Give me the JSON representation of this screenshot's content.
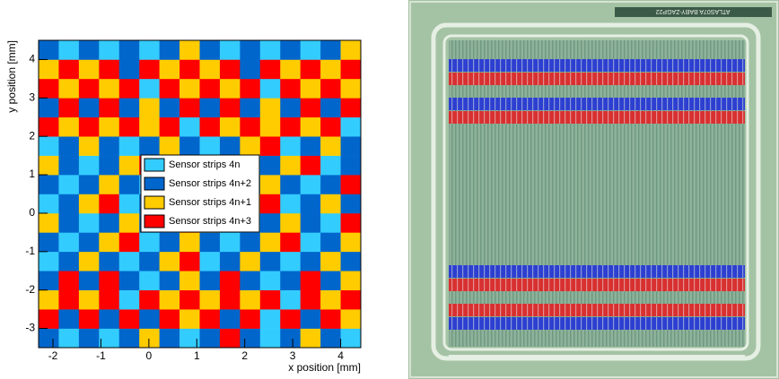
{
  "chart_data": {
    "type": "heatmap",
    "xlabel": "x position [mm]",
    "ylabel": "y position [mm]",
    "xlim": [
      -2.3,
      4.42
    ],
    "ylim": [
      -3.5,
      4.5
    ],
    "xticks": [
      -2,
      -1,
      0,
      1,
      2,
      3,
      4
    ],
    "yticks": [
      -3,
      -2,
      -1,
      0,
      1,
      2,
      3,
      4
    ],
    "xbins": [
      -2.3,
      -1.88,
      -1.46,
      -1.04,
      -0.62,
      -0.2,
      0.22,
      0.64,
      1.06,
      1.48,
      1.9,
      2.32,
      2.74,
      3.16,
      3.58,
      4.0,
      4.42
    ],
    "ybins": [
      -3.5,
      -3.0,
      -2.5,
      -2.0,
      -1.5,
      -1.0,
      -0.5,
      0.0,
      0.5,
      1.0,
      1.5,
      2.0,
      2.5,
      3.0,
      3.5,
      4.0,
      4.5
    ],
    "series": [
      {
        "name": "Sensor strips 4n",
        "color": "#33ccff"
      },
      {
        "name": "Sensor strips 4n+1",
        "color": "#ffcc00"
      },
      {
        "name": "Sensor strips 4n+2",
        "color": "#0066cc"
      },
      {
        "name": "Sensor strips 4n+3",
        "color": "#ff0000"
      }
    ],
    "legend_order": [
      0,
      2,
      1,
      3
    ],
    "z": [
      [
        2,
        0,
        2,
        0,
        2,
        1,
        2,
        0,
        2,
        3,
        2,
        0,
        2,
        1,
        2,
        0
      ],
      [
        3,
        2,
        3,
        2,
        3,
        2,
        3,
        1,
        3,
        2,
        3,
        0,
        3,
        2,
        3,
        1
      ],
      [
        1,
        3,
        1,
        3,
        0,
        3,
        1,
        3,
        1,
        3,
        1,
        3,
        0,
        3,
        1,
        3
      ],
      [
        2,
        3,
        2,
        3,
        2,
        0,
        2,
        1,
        2,
        3,
        2,
        0,
        2,
        3,
        2,
        1
      ],
      [
        0,
        2,
        1,
        2,
        0,
        2,
        1,
        3,
        0,
        2,
        1,
        2,
        0,
        2,
        1,
        2
      ],
      [
        2,
        0,
        2,
        1,
        3,
        0,
        2,
        1,
        2,
        0,
        2,
        1,
        3,
        0,
        2,
        1
      ],
      [
        1,
        2,
        0,
        2,
        1,
        2,
        0,
        3,
        1,
        2,
        0,
        2,
        1,
        2,
        0,
        3
      ],
      [
        0,
        2,
        1,
        3,
        0,
        2,
        1,
        2,
        0,
        2,
        1,
        3,
        0,
        2,
        1,
        2
      ],
      [
        2,
        0,
        2,
        1,
        2,
        0,
        2,
        3,
        2,
        0,
        2,
        1,
        2,
        0,
        2,
        3
      ],
      [
        1,
        2,
        0,
        2,
        1,
        3,
        0,
        2,
        1,
        2,
        0,
        2,
        1,
        3,
        0,
        2
      ],
      [
        0,
        2,
        1,
        2,
        0,
        2,
        1,
        2,
        0,
        2,
        1,
        3,
        0,
        2,
        1,
        2
      ],
      [
        3,
        1,
        3,
        1,
        3,
        1,
        3,
        0,
        3,
        1,
        3,
        1,
        3,
        1,
        3,
        0
      ],
      [
        2,
        3,
        2,
        3,
        2,
        1,
        2,
        3,
        2,
        3,
        2,
        1,
        2,
        3,
        2,
        3
      ],
      [
        3,
        1,
        3,
        1,
        3,
        0,
        3,
        1,
        3,
        1,
        3,
        0,
        3,
        1,
        3,
        1
      ],
      [
        1,
        3,
        1,
        3,
        2,
        3,
        1,
        3,
        1,
        3,
        2,
        3,
        1,
        3,
        1,
        3
      ],
      [
        2,
        0,
        2,
        0,
        2,
        0,
        2,
        1,
        2,
        0,
        2,
        0,
        2,
        0,
        2,
        1
      ]
    ]
  },
  "photo": {
    "chip_label": "ATLAS07A BABY-ZAGP22"
  }
}
